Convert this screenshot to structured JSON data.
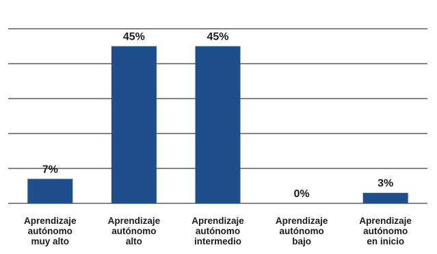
{
  "chart_data": {
    "type": "bar",
    "categories": [
      [
        "Aprendizaje",
        "autónomo",
        "muy alto"
      ],
      [
        "Aprendizaje",
        "autónomo",
        "alto"
      ],
      [
        "Aprendizaje",
        "autónomo",
        "intermedio"
      ],
      [
        "Aprendizaje",
        "autónomo",
        "bajo"
      ],
      [
        "Aprendizaje",
        "autónomo",
        "en inicio"
      ]
    ],
    "values": [
      7,
      45,
      45,
      0,
      3
    ],
    "value_labels": [
      "7%",
      "45%",
      "45%",
      "0%",
      "3%"
    ],
    "ylim": [
      0,
      50
    ],
    "y_gridlines": [
      0,
      10,
      20,
      30,
      40,
      50
    ],
    "grid": true,
    "bar_color": "#1f4e8c",
    "gridline_color": "#3a3a3a",
    "title": "",
    "xlabel": "",
    "ylabel": ""
  }
}
